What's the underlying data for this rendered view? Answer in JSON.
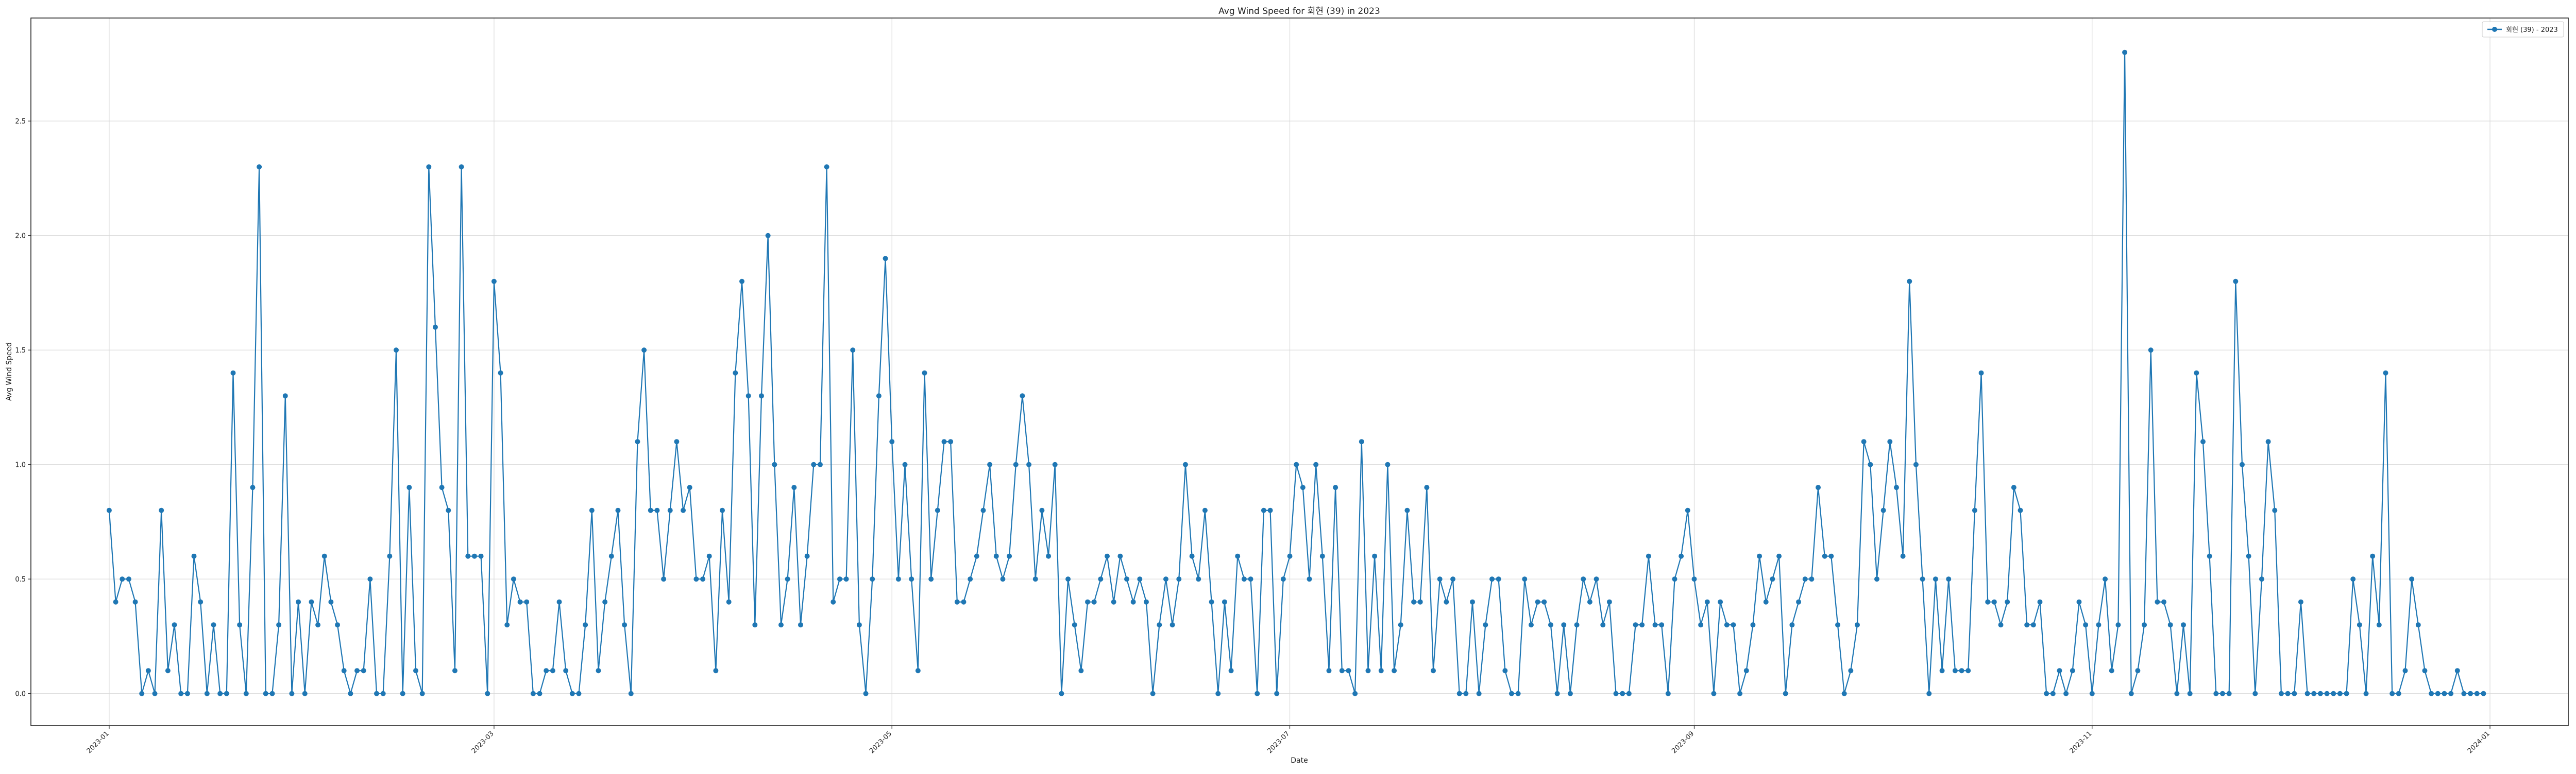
{
  "chart_data": {
    "type": "line",
    "title": "Avg Wind Speed for 회현 (39) in 2023",
    "xlabel": "Date",
    "ylabel": "Avg Wind Speed",
    "xlim": [
      "2022-12-20",
      "2024-01-13"
    ],
    "ylim": [
      -0.14,
      2.95
    ],
    "xticks": [
      "2023-01",
      "2023-03",
      "2023-05",
      "2023-07",
      "2023-09",
      "2023-11",
      "2024-01"
    ],
    "yticks": [
      0.0,
      0.5,
      1.0,
      1.5,
      2.0,
      2.5
    ],
    "ytick_labels": [
      "0.0",
      "0.5",
      "1.0",
      "1.5",
      "2.0",
      "2.5"
    ],
    "grid": true,
    "legend_position": "top-right",
    "color": "#1f77b4",
    "start_date": "2023-01-01",
    "series": [
      {
        "name": "회현 (39) - 2023",
        "values": [
          0.8,
          0.4,
          0.5,
          0.5,
          0.4,
          0.0,
          0.1,
          0.0,
          0.8,
          0.1,
          0.3,
          0.0,
          0.0,
          0.6,
          0.4,
          0.0,
          0.3,
          0.0,
          0.0,
          1.4,
          0.3,
          0.0,
          0.9,
          2.3,
          0.0,
          0.0,
          0.3,
          1.3,
          0.0,
          0.4,
          0.0,
          0.4,
          0.3,
          0.6,
          0.4,
          0.3,
          0.1,
          0.0,
          0.1,
          0.1,
          0.5,
          0.0,
          0.0,
          0.6,
          1.5,
          0.0,
          0.9,
          0.1,
          0.0,
          2.3,
          1.6,
          0.9,
          0.8,
          0.1,
          2.3,
          0.6,
          0.6,
          0.6,
          0.0,
          1.8,
          1.4,
          0.3,
          0.5,
          0.4,
          0.4,
          0.0,
          0.0,
          0.1,
          0.1,
          0.4,
          0.1,
          0.0,
          0.0,
          0.3,
          0.8,
          0.1,
          0.4,
          0.6,
          0.8,
          0.3,
          0.0,
          1.1,
          1.5,
          0.8,
          0.8,
          0.5,
          0.8,
          1.1,
          0.8,
          0.9,
          0.5,
          0.5,
          0.6,
          0.1,
          0.8,
          0.4,
          1.4,
          1.8,
          1.3,
          0.3,
          1.3,
          2.0,
          1.0,
          0.3,
          0.5,
          0.9,
          0.3,
          0.6,
          1.0,
          1.0,
          2.3,
          0.4,
          0.5,
          0.5,
          1.5,
          0.3,
          0.0,
          0.5,
          1.3,
          1.9,
          1.1,
          0.5,
          1.0,
          0.5,
          0.1,
          1.4,
          0.5,
          0.8,
          1.1,
          1.1,
          0.4,
          0.4,
          0.5,
          0.6,
          0.8,
          1.0,
          0.6,
          0.5,
          0.6,
          1.0,
          1.3,
          1.0,
          0.5,
          0.8,
          0.6,
          1.0,
          0.0,
          0.5,
          0.3,
          0.1,
          0.4,
          0.4,
          0.5,
          0.6,
          0.4,
          0.6,
          0.5,
          0.4,
          0.5,
          0.4,
          0.0,
          0.3,
          0.5,
          0.3,
          0.5,
          1.0,
          0.6,
          0.5,
          0.8,
          0.4,
          0.0,
          0.4,
          0.1,
          0.6,
          0.5,
          0.5,
          0.0,
          0.8,
          0.8,
          0.0,
          0.5,
          0.6,
          1.0,
          0.9,
          0.5,
          1.0,
          0.6,
          0.1,
          0.9,
          0.1,
          0.1,
          0.0,
          1.1,
          0.1,
          0.6,
          0.1,
          1.0,
          0.1,
          0.3,
          0.8,
          0.4,
          0.4,
          0.9,
          0.1,
          0.5,
          0.4,
          0.5,
          0.0,
          0.0,
          0.4,
          0.0,
          0.3,
          0.5,
          0.5,
          0.1,
          0.0,
          0.0,
          0.5,
          0.3,
          0.4,
          0.4,
          0.3,
          0.0,
          0.3,
          0.0,
          0.3,
          0.5,
          0.4,
          0.5,
          0.3,
          0.4,
          0.0,
          0.0,
          0.0,
          0.3,
          0.3,
          0.6,
          0.3,
          0.3,
          0.0,
          0.5,
          0.6,
          0.8,
          0.5,
          0.3,
          0.4,
          0.0,
          0.4,
          0.3,
          0.3,
          0.0,
          0.1,
          0.3,
          0.6,
          0.4,
          0.5,
          0.6,
          0.0,
          0.3,
          0.4,
          0.5,
          0.5,
          0.9,
          0.6,
          0.6,
          0.3,
          0.0,
          0.1,
          0.3,
          1.1,
          1.0,
          0.5,
          0.8,
          1.1,
          0.9,
          0.6,
          1.8,
          1.0,
          0.5,
          0.0,
          0.5,
          0.1,
          0.5,
          0.1,
          0.1,
          0.1,
          0.8,
          1.4,
          0.4,
          0.4,
          0.3,
          0.4,
          0.9,
          0.8,
          0.3,
          0.3,
          0.4,
          0.0,
          0.0,
          0.1,
          0.0,
          0.1,
          0.4,
          0.3,
          0.0,
          0.3,
          0.5,
          0.1,
          0.3,
          2.8,
          0.0,
          0.1,
          0.3,
          1.5,
          0.4,
          0.4,
          0.3,
          0.0,
          0.3,
          0.0,
          1.4,
          1.1,
          0.6,
          0.0,
          0.0,
          0.0,
          1.8,
          1.0,
          0.6,
          0.0,
          0.5,
          1.1,
          0.8,
          0.0,
          0.0,
          0.0,
          0.4,
          0.0,
          0.0,
          0.0,
          0.0,
          0.0,
          0.0,
          0.0,
          0.5,
          0.3,
          0.0,
          0.6,
          0.3,
          1.4,
          0.0,
          0.0,
          0.1,
          0.5,
          0.3,
          0.1,
          0.0,
          0.0,
          0.0,
          0.0,
          0.1,
          0.0,
          0.0,
          0.0,
          0.0
        ]
      }
    ]
  }
}
